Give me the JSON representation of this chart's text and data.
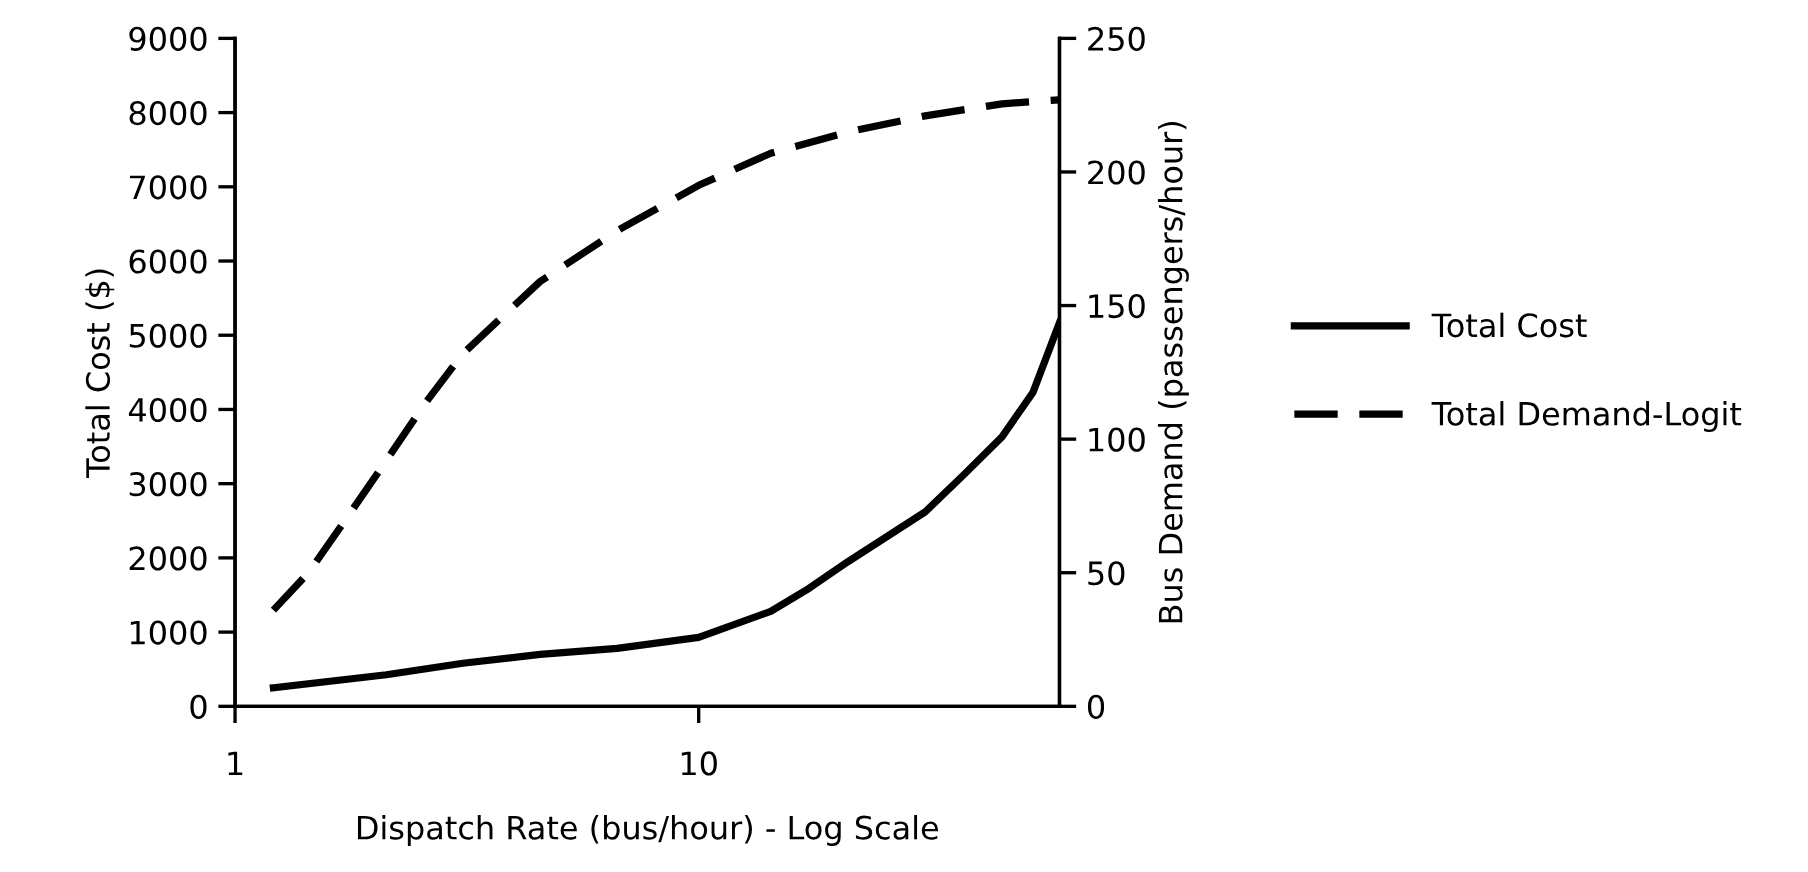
{
  "chart_data": {
    "type": "line",
    "xlabel": "Dispatch Rate (bus/hour) - Log Scale",
    "ylabel": "Total Cost ($)",
    "y2label": "Bus Demand (passengers/hour)",
    "log": "x",
    "xlim": [
      1,
      60
    ],
    "xticks": [
      1,
      10
    ],
    "ylim": [
      0,
      9000
    ],
    "yticks": [
      0,
      1000,
      2000,
      3000,
      4000,
      5000,
      6000,
      7000,
      8000,
      9000
    ],
    "y2lim": [
      0,
      250
    ],
    "y2ticks": [
      0,
      50,
      100,
      150,
      200,
      250
    ],
    "grid": false,
    "legend": "right",
    "marker": "none",
    "series": [
      {
        "name": "Total Cost",
        "color": "#000000",
        "line_style": "solid",
        "x": [
          1.21,
          2.12,
          3.1,
          4.55,
          6.67,
          10,
          14.3,
          17.3,
          21,
          30.8,
          37.3,
          45.1,
          52.6,
          60
        ],
        "values": [
          250,
          425,
          580,
          700,
          780,
          930,
          1280,
          1590,
          1950,
          2620,
          3120,
          3630,
          4230,
          5170
        ]
      },
      {
        "name": "Total Demand-Logit",
        "color": "#000000",
        "line_style": "dashed",
        "axis": "y2",
        "x": [
          1.21,
          1.44,
          1.75,
          2.12,
          2.56,
          3.1,
          4.55,
          6.67,
          10,
          14.3,
          21,
          30.8,
          45.1,
          60
        ],
        "values": [
          36,
          50,
          71,
          92,
          113,
          132,
          159,
          178,
          195,
          207,
          215,
          221,
          225.5,
          227
        ]
      }
    ]
  }
}
